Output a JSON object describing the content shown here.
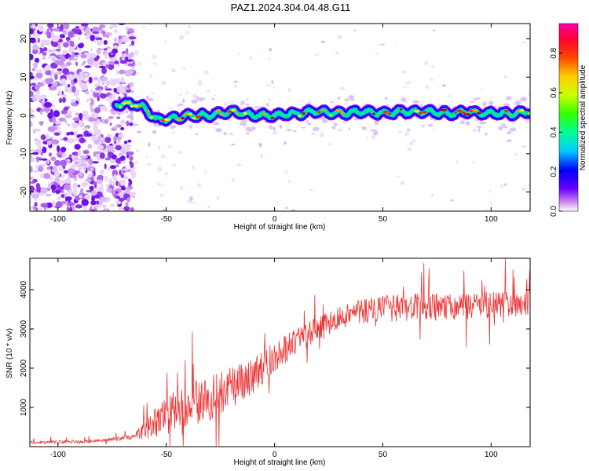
{
  "figure": {
    "title": "PAZ1.2024.304.04.48.G11"
  },
  "chart_data": [
    {
      "type": "heatmap",
      "title": "PAZ1.2024.304.04.48.G11",
      "xlabel": "Height of straight line (km)",
      "ylabel": "Frequency (Hz)",
      "xlim": [
        -113,
        118
      ],
      "ylim": [
        -25,
        24
      ],
      "x_ticks": [
        -100,
        -50,
        0,
        50,
        100
      ],
      "y_ticks": [
        -20,
        -10,
        0,
        10,
        20
      ],
      "ridge": {
        "description_points_x": [
          -73,
          -65,
          -60,
          -55,
          -50,
          -40,
          -30,
          -20,
          -10,
          0,
          10,
          20,
          30,
          40,
          50,
          60,
          70,
          80,
          90,
          100,
          110,
          118
        ],
        "frequency_hz": [
          3,
          3,
          2,
          -1,
          -1,
          0,
          0,
          1,
          0,
          0,
          0.5,
          1,
          0.5,
          1,
          0.5,
          1,
          1,
          0.5,
          1,
          0.5,
          0.5,
          1
        ]
      },
      "colorbar": {
        "label": "Normalized spectral amplitude",
        "range": [
          0,
          0.95
        ],
        "ticks": [
          0.0,
          0.2,
          0.4,
          0.6,
          0.8
        ]
      }
    },
    {
      "type": "line",
      "xlabel": "Height of straight line (km)",
      "ylabel": "SNR (10 * v/v)",
      "xlim": [
        -113,
        118
      ],
      "ylim": [
        0,
        4800
      ],
      "x_ticks": [
        -100,
        -50,
        0,
        50,
        100
      ],
      "y_ticks": [
        1000,
        2000,
        3000,
        4000
      ],
      "color": "#ee3333",
      "trend_x": [
        -113,
        -100,
        -80,
        -65,
        -60,
        -55,
        -50,
        -40,
        -30,
        -20,
        -10,
        0,
        10,
        20,
        30,
        40,
        50,
        60,
        70,
        80,
        90,
        100,
        110,
        118
      ],
      "trend_y": [
        100,
        120,
        150,
        250,
        400,
        600,
        800,
        1100,
        1200,
        1500,
        1800,
        2300,
        2700,
        3000,
        3300,
        3450,
        3500,
        3550,
        3550,
        3550,
        3600,
        3600,
        3650,
        3700
      ],
      "noise_y": [
        40,
        40,
        40,
        60,
        250,
        400,
        500,
        550,
        600,
        550,
        450,
        400,
        350,
        300,
        300,
        350,
        350,
        350,
        350,
        350,
        350,
        350,
        350,
        350
      ]
    }
  ]
}
